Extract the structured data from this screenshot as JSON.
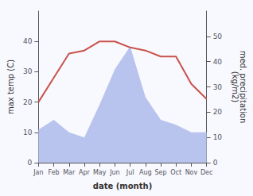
{
  "chart_data": {
    "type": "line",
    "xlabel": "date (month)",
    "ylabel": "max temp (C)",
    "y2label": "med. precipitation\n(kg/m2)",
    "categories": [
      "Jan",
      "Feb",
      "Mar",
      "Apr",
      "May",
      "Jun",
      "Jul",
      "Aug",
      "Sep",
      "Oct",
      "Nov",
      "Dec"
    ],
    "series": [
      {
        "type": "area",
        "color": "#b8c4ee",
        "axis": "y2",
        "values": [
          13,
          17,
          12,
          10,
          23,
          37,
          46,
          26,
          17,
          15,
          12,
          12
        ]
      },
      {
        "type": "line",
        "color": "#c9524a",
        "values": [
          20,
          28,
          36,
          37,
          40,
          40,
          38,
          37,
          35,
          35,
          26,
          21
        ]
      }
    ],
    "ylim": [
      0,
      50
    ],
    "yticks": [
      0,
      10,
      20,
      30,
      40
    ],
    "y2lim": [
      0,
      60
    ],
    "y2ticks": [
      0,
      10,
      20,
      30,
      40,
      50
    ],
    "grid": false
  }
}
